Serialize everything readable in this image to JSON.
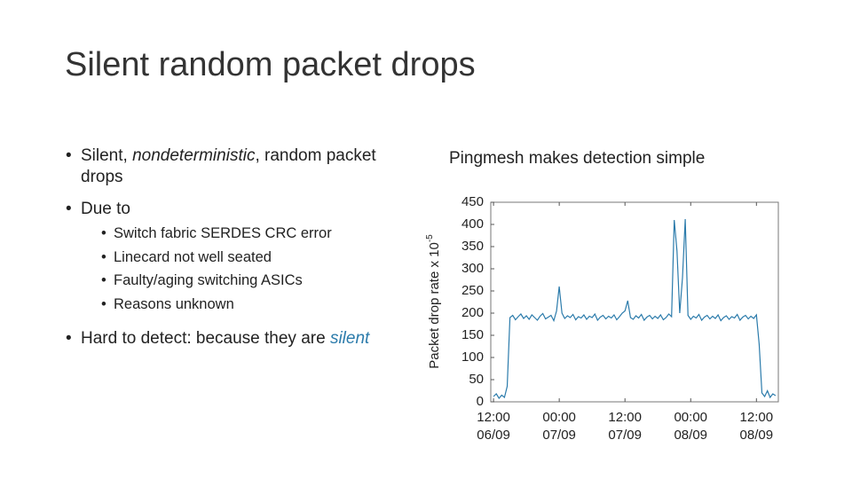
{
  "title": "Silent random packet drops",
  "bullets": [
    {
      "segments": [
        "Silent, ",
        "nondeterministic",
        ", random packet drops"
      ]
    },
    {
      "segments": [
        "Due to"
      ],
      "subs": [
        "Switch fabric SERDES CRC error",
        "Linecard not well seated",
        "Faulty/aging switching ASICs",
        "Reasons unknown"
      ]
    },
    {
      "segments": [
        "Hard to detect: because they are ",
        "silent"
      ]
    }
  ],
  "chart_data": {
    "type": "line",
    "title": "Pingmesh makes detection simple",
    "ylabel": "Packet drop rate x 10",
    "ylabel_sup": "-5",
    "color": "#2b7bab",
    "xlim": [
      -0.5,
      52
    ],
    "ylim": [
      0,
      450
    ],
    "xticks": [
      {
        "value": 0,
        "label": "12:00"
      },
      {
        "value": 12,
        "label": "00:00"
      },
      {
        "value": 24,
        "label": "12:00"
      },
      {
        "value": 36,
        "label": "00:00"
      },
      {
        "value": 48,
        "label": "12:00"
      }
    ],
    "xtick_dates": [
      "06/09",
      "07/09",
      "07/09",
      "08/09",
      "08/09"
    ],
    "yticks": [
      0,
      50,
      100,
      150,
      200,
      250,
      300,
      350,
      400,
      450
    ],
    "x": [
      0,
      0.5,
      1,
      1.5,
      2,
      2.5,
      3,
      3.5,
      4,
      4.5,
      5,
      5.5,
      6,
      6.5,
      7,
      7.5,
      8,
      8.5,
      9,
      9.5,
      10,
      10.5,
      11,
      11.5,
      12,
      12.5,
      13,
      13.5,
      14,
      14.5,
      15,
      15.5,
      16,
      16.5,
      17,
      17.5,
      18,
      18.5,
      19,
      19.5,
      20,
      20.5,
      21,
      21.5,
      22,
      22.5,
      23,
      23.5,
      24,
      24.5,
      25,
      25.5,
      26,
      26.5,
      27,
      27.5,
      28,
      28.5,
      29,
      29.5,
      30,
      30.5,
      31,
      31.5,
      32,
      32.5,
      33,
      33.5,
      34,
      34.5,
      35,
      35.5,
      36,
      36.5,
      37,
      37.5,
      38,
      38.5,
      39,
      39.5,
      40,
      40.5,
      41,
      41.5,
      42,
      42.5,
      43,
      43.5,
      44,
      44.5,
      45,
      45.5,
      46,
      46.5,
      47,
      47.5,
      48,
      48.5,
      49,
      49.5,
      50,
      50.5,
      51,
      51.5
    ],
    "values": [
      12,
      18,
      8,
      15,
      10,
      35,
      190,
      195,
      185,
      192,
      198,
      188,
      194,
      186,
      196,
      190,
      184,
      193,
      199,
      187,
      191,
      195,
      183,
      205,
      260,
      200,
      188,
      194,
      190,
      197,
      185,
      192,
      189,
      196,
      186,
      193,
      190,
      198,
      184,
      191,
      195,
      187,
      193,
      189,
      196,
      185,
      192,
      200,
      205,
      228,
      190,
      186,
      194,
      189,
      197,
      184,
      191,
      195,
      187,
      193,
      188,
      196,
      185,
      190,
      198,
      192,
      410,
      340,
      200,
      280,
      412,
      195,
      186,
      193,
      189,
      197,
      184,
      191,
      195,
      187,
      193,
      188,
      196,
      183,
      190,
      194,
      186,
      192,
      189,
      197,
      184,
      191,
      195,
      187,
      193,
      188,
      196,
      130,
      20,
      12,
      25,
      10,
      18,
      14
    ]
  }
}
